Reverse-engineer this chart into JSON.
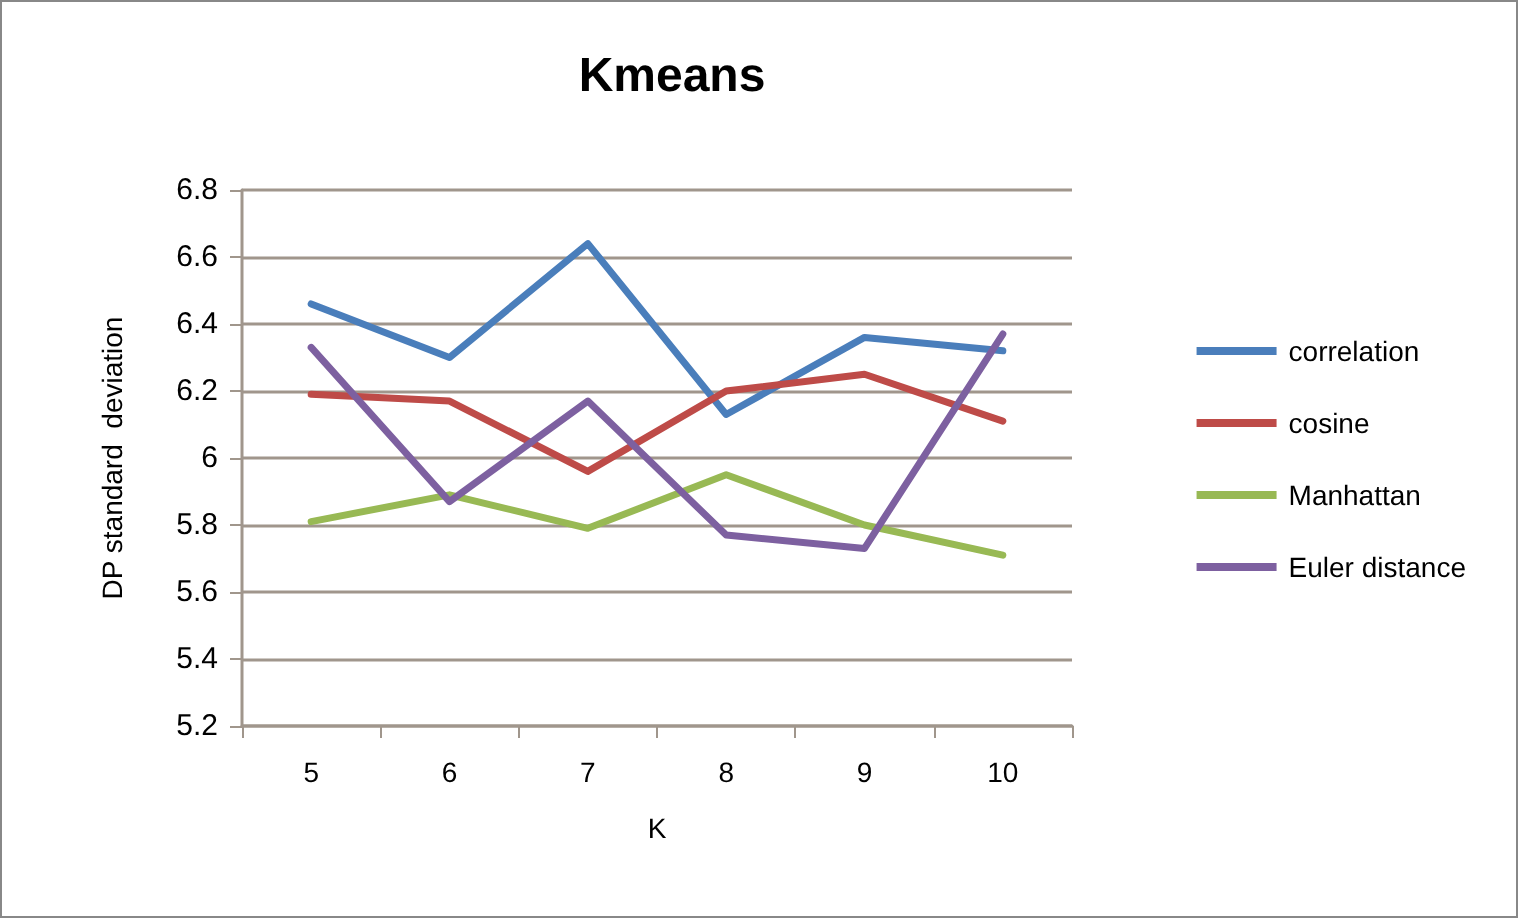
{
  "chart_data": {
    "type": "line",
    "title": "Kmeans",
    "xlabel": "K",
    "ylabel": "DP standard  deviation",
    "categories": [
      "5",
      "6",
      "7",
      "8",
      "9",
      "10"
    ],
    "series": [
      {
        "name": "correlation",
        "color": "#4a7ebb",
        "values": [
          6.46,
          6.3,
          6.64,
          6.13,
          6.36,
          6.32
        ]
      },
      {
        "name": "cosine",
        "color": "#be4b48",
        "values": [
          6.19,
          6.17,
          5.96,
          6.2,
          6.25,
          6.11
        ]
      },
      {
        "name": "Manhattan",
        "color": "#98b954",
        "values": [
          5.81,
          5.89,
          5.79,
          5.95,
          5.8,
          5.71
        ]
      },
      {
        "name": "Euler distance",
        "color": "#7d60a0",
        "values": [
          6.33,
          5.87,
          6.17,
          5.77,
          5.73,
          6.37
        ]
      }
    ],
    "ylim": [
      5.2,
      6.8
    ],
    "yticks": [
      5.2,
      5.4,
      5.6,
      5.8,
      6,
      6.2,
      6.4,
      6.6,
      6.8
    ],
    "grid": "y",
    "legend": "right",
    "marker": "none",
    "line_style": "solid"
  }
}
